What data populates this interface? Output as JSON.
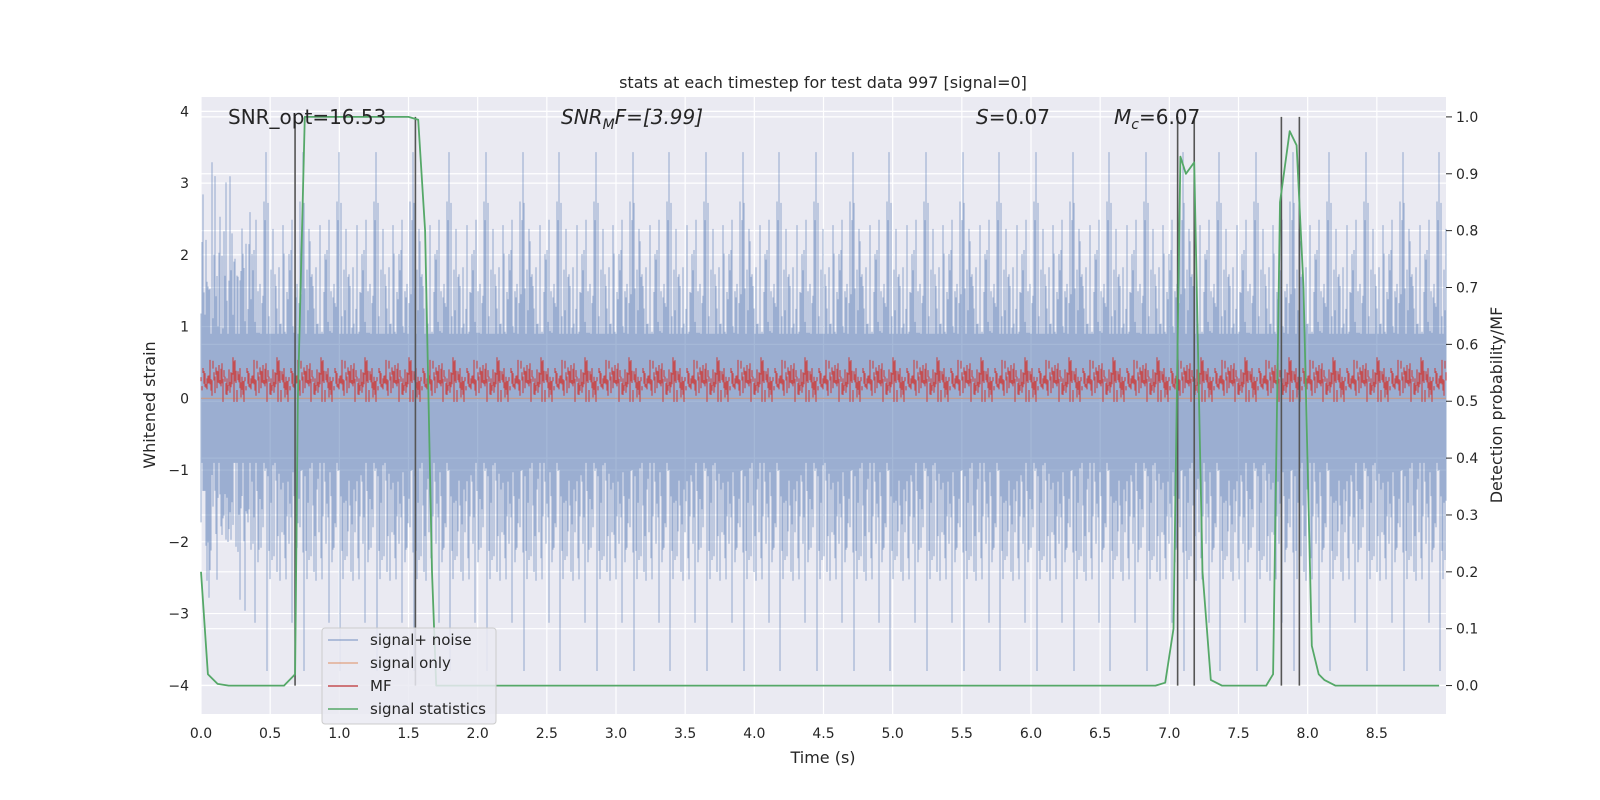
{
  "chart_data": {
    "type": "line",
    "title": "stats at each timestep for test data 997 [signal=0]",
    "xlabel": "Time (s)",
    "ylabel_left": "Whitened strain",
    "ylabel_right": "Detection probability/MF",
    "xlim": [
      0.0,
      9.0
    ],
    "ylim_left": [
      -4.4,
      4.2
    ],
    "ylim_right": [
      -0.05,
      1.035
    ],
    "x_ticks": [
      "0.0",
      "0.5",
      "1.0",
      "1.5",
      "2.0",
      "2.5",
      "3.0",
      "3.5",
      "4.0",
      "4.5",
      "5.0",
      "5.5",
      "6.0",
      "6.5",
      "7.0",
      "7.5",
      "8.0",
      "8.5"
    ],
    "y_ticks_left": [
      "4",
      "3",
      "2",
      "1",
      "0",
      "−1",
      "−2",
      "−3",
      "−4"
    ],
    "y_ticks_right": [
      "1.0",
      "0.9",
      "0.8",
      "0.7",
      "0.6",
      "0.5",
      "0.4",
      "0.3",
      "0.2",
      "0.1",
      "0.0"
    ],
    "grid": true,
    "legend_position": "lower-left",
    "annotations": {
      "snr_opt": "SNR_opt=16.53",
      "snr_mf_main": "SNR",
      "snr_mf_sub": "M",
      "snr_mf_rest": "F=[3.99]",
      "s_main": "S",
      "s_rest": "=0.07",
      "mc_main": "M",
      "mc_sub": "c",
      "mc_rest": "=6.07"
    },
    "series": [
      {
        "name": "signal+ noise",
        "color": "#4c72b0",
        "axis": "left",
        "description_stats": {
          "min": -3.8,
          "max": 3.8,
          "typical_range": [
            -2.0,
            2.0
          ]
        }
      },
      {
        "name": "signal only",
        "color": "#dd8452",
        "axis": "left",
        "values": "flat at 0"
      },
      {
        "name": "MF",
        "color": "#c44e52",
        "axis": "left",
        "description_stats": {
          "min": 0.0,
          "max": 1.0,
          "typical_range": [
            0.1,
            0.6
          ]
        }
      },
      {
        "name": "signal statistics",
        "color": "#55a868",
        "axis": "right",
        "x": [
          0.0,
          0.05,
          0.12,
          0.2,
          0.6,
          0.68,
          0.7,
          0.75,
          0.8,
          1.5,
          1.57,
          1.62,
          1.67,
          1.7,
          2.0,
          6.9,
          6.97,
          7.03,
          7.06,
          7.08,
          7.12,
          7.18,
          7.24,
          7.3,
          7.38,
          7.7,
          7.75,
          7.8,
          7.87,
          7.92,
          7.97,
          8.03,
          8.08,
          8.12,
          8.2,
          8.4,
          8.95
        ],
        "y": [
          0.2,
          0.02,
          0.003,
          0.0,
          0.0,
          0.02,
          0.5,
          1.0,
          1.0,
          1.0,
          0.995,
          0.8,
          0.2,
          0.0,
          0.0,
          0.0,
          0.005,
          0.1,
          0.6,
          0.93,
          0.9,
          0.92,
          0.2,
          0.01,
          0.0,
          0.0,
          0.02,
          0.85,
          0.975,
          0.95,
          0.7,
          0.07,
          0.02,
          0.01,
          0.0,
          0.0,
          0.0
        ]
      }
    ],
    "vertical_markers_x": [
      0.68,
      1.55,
      7.06,
      7.18,
      7.81,
      7.94
    ]
  }
}
